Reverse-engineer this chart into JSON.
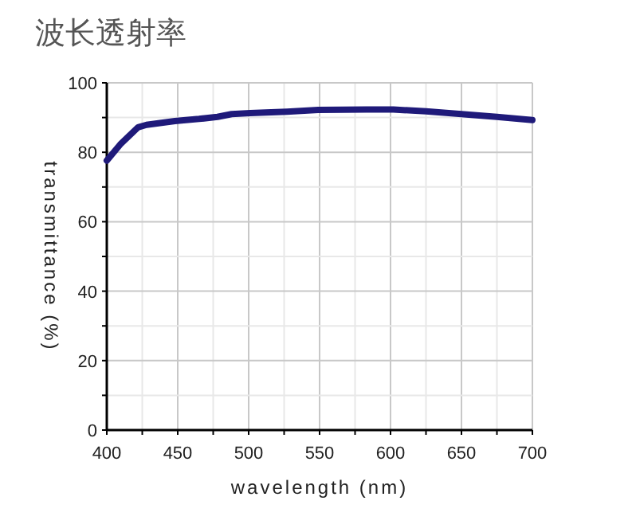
{
  "chart_data": {
    "type": "line",
    "title": "波长透射率",
    "xlabel": "wavelength (nm)",
    "ylabel": "transmittance (%)",
    "xlim": [
      400,
      700
    ],
    "ylim": [
      0,
      100
    ],
    "xticks": [
      400,
      {
        "value": 425,
        "label": null
      },
      450,
      {
        "value": 475,
        "label": null
      },
      500,
      {
        "value": 525,
        "label": null
      },
      550,
      {
        "value": 575,
        "label": null
      },
      600,
      {
        "value": 625,
        "label": null
      },
      650,
      {
        "value": 675,
        "label": null
      },
      700
    ],
    "yticks": [
      0,
      {
        "value": 10,
        "label": null
      },
      20,
      {
        "value": 30,
        "label": null
      },
      40,
      {
        "value": 50,
        "label": null
      },
      60,
      {
        "value": 70,
        "label": null
      },
      80,
      {
        "value": 90,
        "label": null
      },
      100
    ],
    "grid": true,
    "marker": "none",
    "line_style": "solid",
    "series": [
      {
        "color": "#1f1a7a",
        "x": [
          400,
          410,
          422,
          428,
          448,
          465,
          478,
          488,
          501,
          527,
          549,
          583,
          602,
          625,
          650,
          675,
          700
        ],
        "values": [
          77.6,
          82.5,
          87.2,
          87.9,
          89,
          89.6,
          90.2,
          91,
          91.3,
          91.7,
          92.2,
          92.3,
          92.3,
          91.8,
          91,
          90.2,
          89.3
        ]
      }
    ]
  }
}
